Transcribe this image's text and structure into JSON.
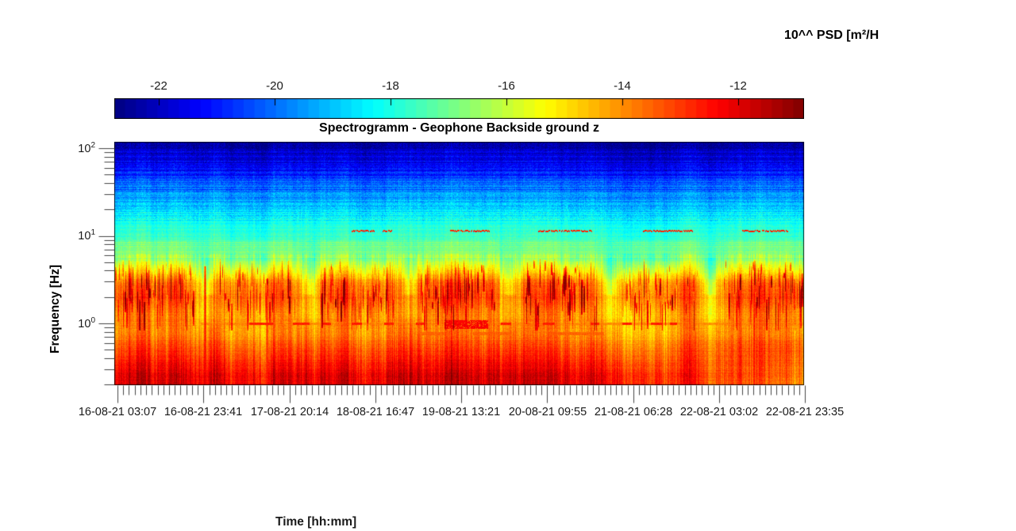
{
  "figure": {
    "background_color": "#ffffff",
    "psd_label": "10^^ PSD [m²/H",
    "title": "Spectrogramm - Geophone Backside ground z"
  },
  "colorbar": {
    "colormap": "jet",
    "segments": 64,
    "tick_labels": [
      "-22",
      "-20",
      "-18",
      "-16",
      "-14",
      "-12"
    ],
    "tick_values": [
      -22,
      -20,
      -18,
      -16,
      -14,
      -12
    ],
    "value_range": [
      -22.77,
      -10.87
    ]
  },
  "y_axis": {
    "label": "Frequency [Hz]",
    "scale": "log",
    "range_hz": [
      0.19,
      118
    ],
    "major_ticks": [
      {
        "base": "10",
        "exp": "2"
      },
      {
        "base": "10",
        "exp": "1"
      },
      {
        "base": "10",
        "exp": "0"
      }
    ]
  },
  "x_axis": {
    "label": "Time [hh:mm]",
    "tick_labels": [
      "16-08-21 03:07",
      "16-08-21 23:41",
      "17-08-21 20:14",
      "18-08-21 16:47",
      "19-08-21 13:21",
      "20-08-21 09:55",
      "21-08-21 06:28",
      "22-08-21 03:02",
      "22-08-21 23:35"
    ]
  },
  "chart_data": {
    "type": "heatmap",
    "title": "Spectrogramm - Geophone Backside ground z",
    "xlabel": "Time [hh:mm]",
    "ylabel": "Frequency [Hz]",
    "colorbar_label": "10^^ PSD [m²/H",
    "colormap": "jet",
    "colorbar_ticks": [
      -22,
      -20,
      -18,
      -16,
      -14,
      -12
    ],
    "colorbar_range": [
      -22.77,
      -10.87
    ],
    "x_tick_labels": [
      "16-08-21 03:07",
      "16-08-21 23:41",
      "17-08-21 20:14",
      "18-08-21 16:47",
      "19-08-21 13:21",
      "20-08-21 09:55",
      "21-08-21 06:28",
      "22-08-21 03:02",
      "22-08-21 23:35"
    ],
    "y_scale": "log",
    "y_range_hz": [
      0.19,
      118
    ],
    "y_major_ticks_hz": [
      100,
      10,
      1
    ],
    "frequency_profile": [
      {
        "f": 118,
        "p": -22.3
      },
      {
        "f": 60,
        "p": -21.3
      },
      {
        "f": 30,
        "p": -19.6
      },
      {
        "f": 15,
        "p": -18.2
      },
      {
        "f": 10,
        "p": -17.7
      },
      {
        "f": 6,
        "p": -17.1
      },
      {
        "f": 4,
        "p": -16.2
      },
      {
        "f": 3,
        "p": -15.1
      },
      {
        "f": 2,
        "p": -14.7
      },
      {
        "f": 1.3,
        "p": -14.9
      },
      {
        "f": 1.0,
        "p": -14.4
      },
      {
        "f": 0.7,
        "p": -13.9
      },
      {
        "f": 0.5,
        "p": -13.3
      },
      {
        "f": 0.35,
        "p": -12.7
      },
      {
        "f": 0.25,
        "p": -12.2
      },
      {
        "f": 0.19,
        "p": -12.1
      }
    ],
    "features": {
      "dash_line_11hz": {
        "freq_hz": 11.5,
        "psd_exp": -12.9,
        "segments_frac": [
          [
            0.344,
            0.377
          ],
          [
            0.389,
            0.402
          ],
          [
            0.487,
            0.544
          ],
          [
            0.615,
            0.692
          ],
          [
            0.766,
            0.838
          ],
          [
            0.91,
            0.976
          ]
        ]
      },
      "line_1hz": {
        "freq_hz": 1.0,
        "psd_exp": -14.0,
        "dash_psd_exp": -12.7,
        "start_frac": 0.125,
        "dashes_frac": [
          [
            0.196,
            0.23
          ],
          [
            0.259,
            0.282
          ],
          [
            0.301,
            0.314
          ],
          [
            0.345,
            0.359
          ],
          [
            0.391,
            0.405
          ],
          [
            0.437,
            0.449
          ],
          [
            0.56,
            0.575
          ],
          [
            0.621,
            0.638
          ],
          [
            0.69,
            0.702
          ],
          [
            0.736,
            0.75
          ],
          [
            0.778,
            0.794
          ],
          [
            0.805,
            0.815
          ]
        ],
        "blob_frac": [
          0.479,
          0.542
        ],
        "sub_dashes_frac": [
          [
            0.44,
            0.485
          ],
          [
            0.52,
            0.575
          ],
          [
            0.63,
            0.71
          ]
        ]
      },
      "vertical_events": [
        {
          "x_frac": 0.131,
          "top_freq_hz": 4.5,
          "psd_exp": -12.3
        },
        {
          "x_frac": 0.221,
          "top_freq_hz": 3.2,
          "psd_exp": -12.8
        },
        {
          "x_frac": 0.927,
          "top_freq_hz": 2.2,
          "psd_exp": -12.5
        }
      ],
      "diurnal_quiet_gap_centers_frac": [
        0.136,
        0.281,
        0.427,
        0.572,
        0.718,
        0.863
      ]
    }
  }
}
